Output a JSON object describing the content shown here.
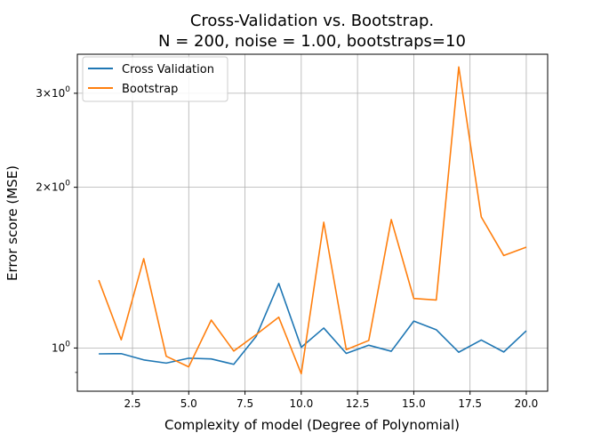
{
  "chart_data": {
    "type": "line",
    "title_line1": "Cross-Validation vs. Bootstrap.",
    "title_line2": "N = 200, noise = 1.00, bootstraps=10",
    "xlabel": "Complexity of model (Degree of Polynomial)",
    "ylabel": "Error score (MSE)",
    "yscale": "log",
    "xlim": [
      0.05,
      20.95
    ],
    "ylim": [
      0.83,
      3.55
    ],
    "grid": true,
    "legend_placement": "top-left",
    "x_ticks": [
      {
        "value": 2.5,
        "label": "2.5"
      },
      {
        "value": 5.0,
        "label": "5.0"
      },
      {
        "value": 7.5,
        "label": "7.5"
      },
      {
        "value": 10.0,
        "label": "10.0"
      },
      {
        "value": 12.5,
        "label": "12.5"
      },
      {
        "value": 15.0,
        "label": "15.0"
      },
      {
        "value": 17.5,
        "label": "17.5"
      },
      {
        "value": 20.0,
        "label": "20.0"
      }
    ],
    "y_ticks": [
      {
        "value": 1,
        "label": "10",
        "exp": "0",
        "mult": ""
      },
      {
        "value": 2,
        "label": "10",
        "exp": "0",
        "mult": "2×"
      },
      {
        "value": 3,
        "label": "10",
        "exp": "0",
        "mult": "3×"
      }
    ],
    "y_minor_ticks": [
      0.9
    ],
    "x": [
      1,
      2,
      3,
      4,
      5,
      6,
      7,
      8,
      9,
      10,
      11,
      12,
      13,
      14,
      15,
      16,
      17,
      18,
      19,
      20
    ],
    "series": [
      {
        "name": "Cross Validation",
        "color": "#1f77b4",
        "values": [
          0.975,
          0.976,
          0.95,
          0.937,
          0.957,
          0.954,
          0.932,
          1.052,
          1.321,
          1.003,
          1.09,
          0.977,
          1.012,
          0.986,
          1.123,
          1.082,
          0.982,
          1.035,
          0.983,
          1.077
        ]
      },
      {
        "name": "Bootstrap",
        "color": "#ff7f0e",
        "values": [
          1.34,
          1.036,
          1.47,
          0.965,
          0.922,
          1.128,
          0.987,
          1.06,
          1.142,
          0.895,
          1.72,
          0.993,
          1.033,
          1.74,
          1.238,
          1.23,
          3.36,
          1.76,
          1.49,
          1.545
        ]
      }
    ]
  }
}
